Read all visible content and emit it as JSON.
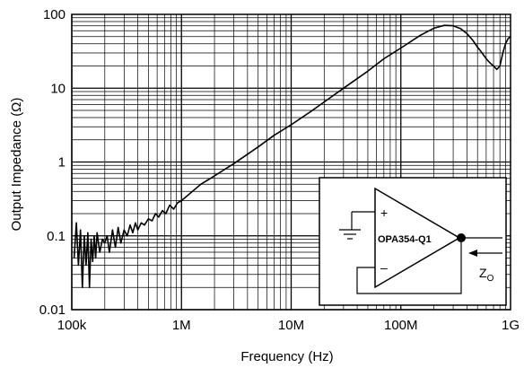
{
  "chart_data": {
    "type": "line",
    "xlabel": "Frequency (Hz)",
    "ylabel": "Output Impedance (Ω)",
    "x_scale": "log",
    "y_scale": "log",
    "xlim": [
      100000,
      1000000000
    ],
    "ylim": [
      0.01,
      100
    ],
    "x_ticks": [
      {
        "value": 100000,
        "label": "100k"
      },
      {
        "value": 1000000,
        "label": "1M"
      },
      {
        "value": 10000000,
        "label": "10M"
      },
      {
        "value": 100000000,
        "label": "100M"
      },
      {
        "value": 1000000000,
        "label": "1G"
      }
    ],
    "y_ticks": [
      {
        "value": 0.01,
        "label": "0.01"
      },
      {
        "value": 0.1,
        "label": "0.1"
      },
      {
        "value": 1,
        "label": "1"
      },
      {
        "value": 10,
        "label": "10"
      },
      {
        "value": 100,
        "label": "100"
      }
    ],
    "grid": true,
    "series": [
      {
        "color": "#000000",
        "x": [
          105000,
          110000,
          115000,
          120000,
          125000,
          130000,
          135000,
          140000,
          145000,
          150000,
          155000,
          160000,
          165000,
          170000,
          180000,
          190000,
          200000,
          210000,
          220000,
          235000,
          250000,
          265000,
          280000,
          300000,
          320000,
          340000,
          360000,
          380000,
          400000,
          430000,
          460000,
          500000,
          540000,
          580000,
          620000,
          670000,
          720000,
          780000,
          850000,
          920000,
          1000000,
          1500000,
          2000000,
          3000000,
          5000000,
          7000000,
          10000000,
          15000000,
          20000000,
          30000000,
          50000000,
          70000000,
          100000000,
          150000000,
          200000000,
          250000000,
          300000000,
          350000000,
          400000000,
          450000000,
          500000000,
          550000000,
          600000000,
          650000000,
          700000000,
          750000000,
          800000000,
          850000000,
          900000000,
          950000000,
          1000000000
        ],
        "y": [
          0.05,
          0.15,
          0.04,
          0.12,
          0.02,
          0.1,
          0.04,
          0.11,
          0.02,
          0.09,
          0.045,
          0.1,
          0.05,
          0.11,
          0.06,
          0.09,
          0.08,
          0.1,
          0.06,
          0.12,
          0.07,
          0.13,
          0.08,
          0.12,
          0.1,
          0.14,
          0.11,
          0.15,
          0.12,
          0.15,
          0.14,
          0.17,
          0.16,
          0.2,
          0.18,
          0.22,
          0.2,
          0.26,
          0.23,
          0.28,
          0.3,
          0.5,
          0.65,
          0.95,
          1.6,
          2.3,
          3.2,
          4.8,
          6.5,
          10,
          17,
          25,
          35,
          52,
          65,
          71,
          70,
          64,
          55,
          45,
          36,
          30,
          25,
          22,
          20,
          18,
          20,
          30,
          40,
          47,
          50
        ]
      }
    ],
    "inset": {
      "device_label": "OPA354-Q1",
      "plus_symbol": "+",
      "minus_symbol": "–",
      "zo_main": "Z",
      "zo_sub": "O"
    }
  }
}
